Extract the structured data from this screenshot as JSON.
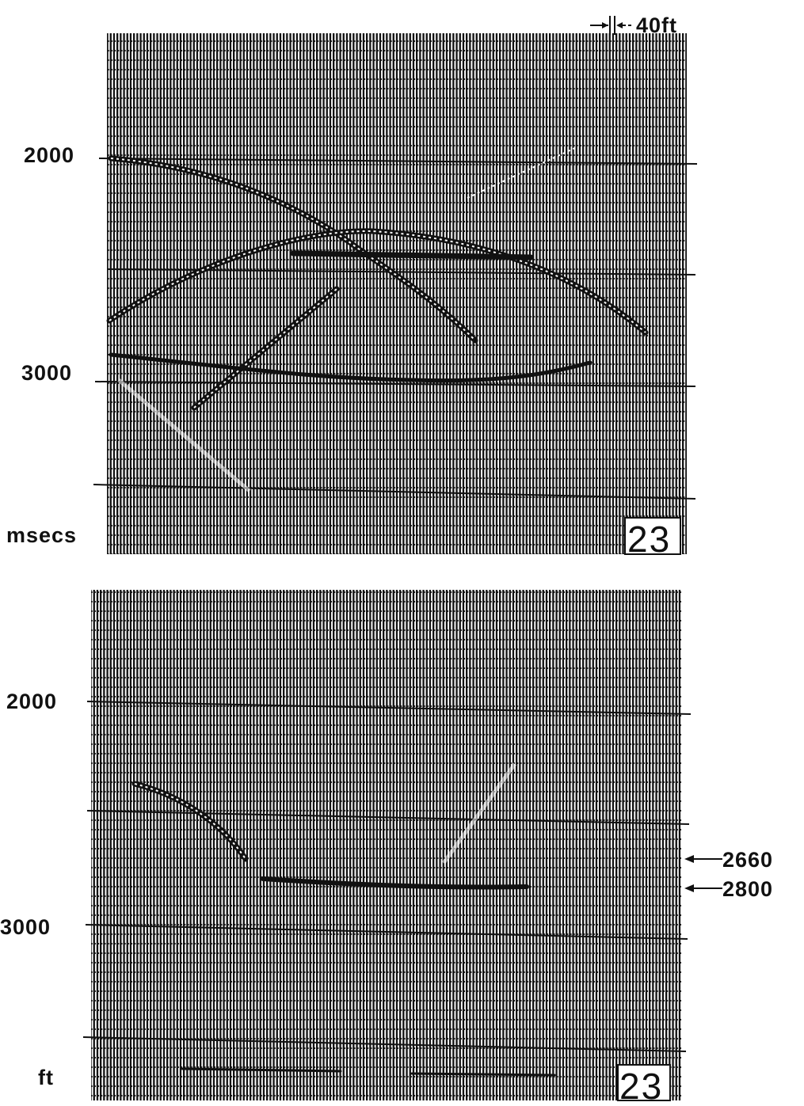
{
  "scale_label": "40ft",
  "panels": [
    {
      "axis_labels": [
        "2000",
        "3000"
      ],
      "unit": "msecs",
      "panel_number": "23"
    },
    {
      "axis_labels": [
        "2000",
        "3000"
      ],
      "unit": "ft",
      "panel_number": "23",
      "markers": [
        "2660",
        "2800"
      ]
    }
  ]
}
